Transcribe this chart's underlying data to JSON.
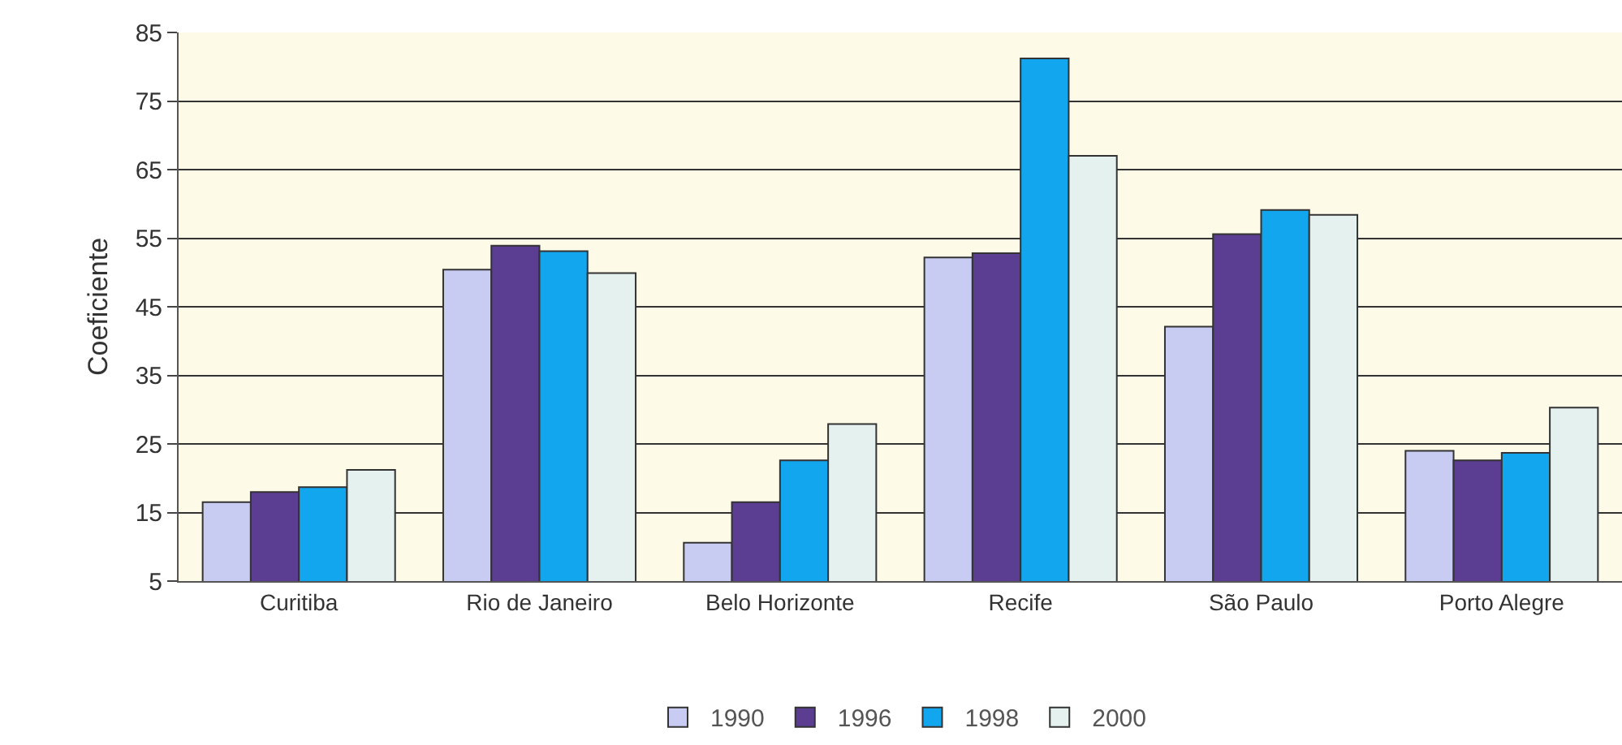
{
  "chart_data": {
    "type": "bar",
    "ylabel": "Coeficiente",
    "categories": [
      "Curitiba",
      "Rio de Janeiro",
      "Belo Horizonte",
      "Recife",
      "São Paulo",
      "Porto Alegre"
    ],
    "series": [
      {
        "name": "1990",
        "color": "#c8cbf2",
        "values": [
          16.5,
          50.4,
          10.6,
          52.2,
          42.1,
          24
        ]
      },
      {
        "name": "1996",
        "color": "#5b3d91",
        "values": [
          18,
          53.9,
          16.5,
          52.8,
          55.6,
          22.6
        ]
      },
      {
        "name": "1998",
        "color": "#12a6ee",
        "values": [
          18.7,
          53.1,
          22.6,
          81.2,
          59.1,
          23.7
        ]
      },
      {
        "name": "2000",
        "color": "#e4f1ef",
        "values": [
          21.2,
          49.9,
          27.9,
          67,
          58.4,
          30.3
        ]
      }
    ],
    "ylim": [
      5,
      85
    ],
    "yticks": [
      5,
      15,
      25,
      35,
      45,
      55,
      65,
      75,
      85
    ],
    "grid": "y",
    "legend": "bottom"
  }
}
